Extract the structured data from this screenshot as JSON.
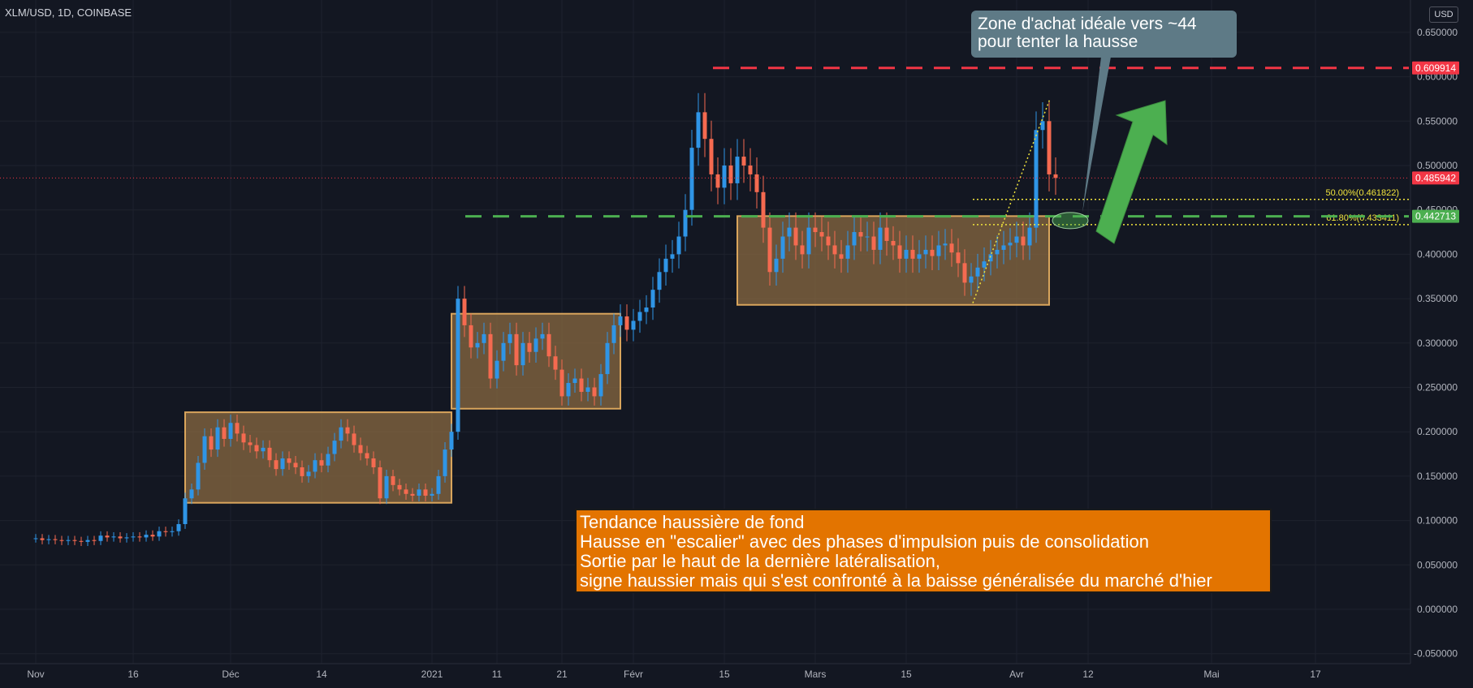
{
  "header": {
    "title": "XLM/USD, 1D, COINBASE",
    "currency": "USD"
  },
  "callout": {
    "line1": "Zone d'achat idéale vers ~44",
    "line2": "pour tenter la hausse"
  },
  "note": {
    "lines": [
      "Tendance haussière de fond",
      "Hausse en \"escalier\" avec des phases d'impulsion puis de consolidation",
      "Sortie par le haut de la dernière latéralisation,",
      "signe haussier mais qui s'est confronté à la baisse généralisée du marché d'hier"
    ]
  },
  "chart_data": {
    "type": "candlestick",
    "symbol": "XLM/USD",
    "interval": "1D",
    "exchange": "COINBASE",
    "ylim": [
      -0.06,
      0.71
    ],
    "y_ticks": [
      "0.650000",
      "0.600000",
      "0.550000",
      "0.500000",
      "0.450000",
      "0.400000",
      "0.350000",
      "0.300000",
      "0.250000",
      "0.200000",
      "0.150000",
      "0.100000",
      "0.050000",
      "0.000000",
      "-0.050000"
    ],
    "x_ticks": [
      {
        "label": "Nov",
        "day": 0
      },
      {
        "label": "16",
        "day": 15
      },
      {
        "label": "Déc",
        "day": 30
      },
      {
        "label": "14",
        "day": 44
      },
      {
        "label": "2021",
        "day": 61
      },
      {
        "label": "11",
        "day": 71
      },
      {
        "label": "21",
        "day": 81
      },
      {
        "label": "Févr",
        "day": 92
      },
      {
        "label": "15",
        "day": 106
      },
      {
        "label": "Mars",
        "day": 120
      },
      {
        "label": "15",
        "day": 134
      },
      {
        "label": "Avr",
        "day": 151
      },
      {
        "label": "12",
        "day": 162
      },
      {
        "label": "Mai",
        "day": 181
      },
      {
        "label": "17",
        "day": 197
      }
    ],
    "closes": [
      0.08,
      0.078,
      0.079,
      0.078,
      0.077,
      0.078,
      0.077,
      0.076,
      0.078,
      0.077,
      0.083,
      0.081,
      0.082,
      0.08,
      0.081,
      0.082,
      0.081,
      0.084,
      0.082,
      0.088,
      0.087,
      0.088,
      0.096,
      0.125,
      0.135,
      0.165,
      0.195,
      0.18,
      0.205,
      0.192,
      0.21,
      0.198,
      0.188,
      0.185,
      0.178,
      0.182,
      0.168,
      0.158,
      0.17,
      0.165,
      0.16,
      0.15,
      0.155,
      0.168,
      0.162,
      0.175,
      0.19,
      0.205,
      0.198,
      0.185,
      0.176,
      0.17,
      0.16,
      0.125,
      0.15,
      0.14,
      0.135,
      0.13,
      0.128,
      0.135,
      0.128,
      0.13,
      0.15,
      0.18,
      0.2,
      0.35,
      0.32,
      0.295,
      0.3,
      0.31,
      0.26,
      0.28,
      0.3,
      0.31,
      0.275,
      0.3,
      0.29,
      0.305,
      0.31,
      0.285,
      0.27,
      0.24,
      0.255,
      0.26,
      0.245,
      0.25,
      0.24,
      0.265,
      0.3,
      0.32,
      0.33,
      0.315,
      0.325,
      0.335,
      0.34,
      0.36,
      0.38,
      0.395,
      0.4,
      0.42,
      0.45,
      0.52,
      0.56,
      0.53,
      0.49,
      0.475,
      0.5,
      0.48,
      0.51,
      0.5,
      0.49,
      0.47,
      0.43,
      0.38,
      0.395,
      0.42,
      0.43,
      0.41,
      0.4,
      0.43,
      0.425,
      0.42,
      0.41,
      0.4,
      0.395,
      0.41,
      0.425,
      0.42,
      0.42,
      0.405,
      0.43,
      0.415,
      0.41,
      0.395,
      0.405,
      0.395,
      0.4,
      0.405,
      0.398,
      0.41,
      0.412,
      0.402,
      0.39,
      0.368,
      0.375,
      0.385,
      0.392,
      0.4,
      0.405,
      0.41,
      0.413,
      0.42,
      0.41,
      0.43,
      0.54,
      0.55,
      0.49,
      0.486
    ],
    "levels": [
      {
        "label": "0.609914",
        "value": 0.609914,
        "color": "#f23645"
      },
      {
        "label": "0.485942",
        "value": 0.485942,
        "color": "#f23645"
      },
      {
        "label": "0.442713",
        "value": 0.442713,
        "color": "#4caf50"
      }
    ],
    "fibonacci": [
      {
        "label": "50.00%(0.461822)",
        "value": 0.461822
      },
      {
        "label": "61.80%(0.433411)",
        "value": 0.433411
      }
    ],
    "consolidation_zones": [
      {
        "day_start": 23,
        "day_end": 64,
        "low": 0.12,
        "high": 0.222
      },
      {
        "day_start": 64,
        "day_end": 90,
        "low": 0.226,
        "high": 0.333
      },
      {
        "day_start": 108,
        "day_end": 156,
        "low": 0.343,
        "high": 0.443
      }
    ],
    "colors": {
      "up": "#2f95e6",
      "down": "#f56a50",
      "bg": "#131722",
      "grid": "#1e222d",
      "zone": "#8a6a42"
    }
  }
}
